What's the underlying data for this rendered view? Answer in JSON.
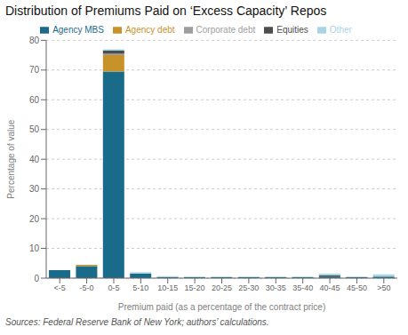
{
  "chart_data": {
    "type": "bar",
    "title": "Distribution of Premiums Paid on ‘Excess Capacity’ Repos",
    "xlabel": "Premium paid (as a percentage of the contract price)",
    "ylabel": "Percentage of value",
    "annotations": [
      "Sources: Federal Reserve Bank of New York; authors’ calculations."
    ],
    "categories": [
      "<-5",
      "-5-0",
      "0-5",
      "5-10",
      "10-15",
      "15-20",
      "20-25",
      "25-30",
      "30-35",
      "35-40",
      "40-45",
      "45-50",
      ">50"
    ],
    "series": [
      {
        "name": "Agency MBS",
        "color": "#1a6b8a",
        "values": [
          2.7,
          4.0,
          69.5,
          1.5,
          0.4,
          0.3,
          0.3,
          0.3,
          0.3,
          0.3,
          0.5,
          0.3,
          0.5
        ]
      },
      {
        "name": "Agency debt",
        "color": "#c8922a",
        "values": [
          0.0,
          0.5,
          5.5,
          0.1,
          0.0,
          0.0,
          0.0,
          0.0,
          0.0,
          0.0,
          0.0,
          0.0,
          0.0
        ]
      },
      {
        "name": "Corporate debt",
        "color": "#9e9e9e",
        "values": [
          0.0,
          0.0,
          0.5,
          0.0,
          0.0,
          0.0,
          0.0,
          0.0,
          0.0,
          0.0,
          0.0,
          0.0,
          0.0
        ]
      },
      {
        "name": "Equities",
        "color": "#4d4d4d",
        "values": [
          0.0,
          0.0,
          1.0,
          0.0,
          0.0,
          0.0,
          0.0,
          0.0,
          0.0,
          0.0,
          0.5,
          0.0,
          0.0
        ]
      },
      {
        "name": "Other",
        "color": "#a8d4e6",
        "values": [
          0.0,
          0.0,
          0.5,
          0.4,
          0.3,
          0.2,
          0.2,
          0.2,
          0.2,
          0.2,
          0.5,
          0.2,
          0.8
        ]
      }
    ],
    "stacked": true,
    "ylim": [
      0,
      80
    ],
    "yticks": [
      0,
      10,
      20,
      30,
      40,
      50,
      60,
      70,
      80
    ],
    "grid": true,
    "legend": "top"
  }
}
